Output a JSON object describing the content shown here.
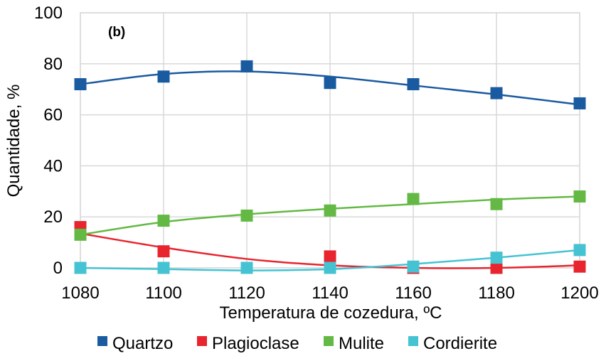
{
  "chart_data": {
    "type": "scatter",
    "panel_label": "(b)",
    "xlabel": "Temperatura de cozedura, ºC",
    "ylabel": "Quantidade, %",
    "xlim": [
      1080,
      1200
    ],
    "ylim": [
      0,
      100
    ],
    "x_ticks": [
      1080,
      1100,
      1120,
      1140,
      1160,
      1180,
      1200
    ],
    "y_ticks": [
      0,
      20,
      40,
      60,
      80,
      100
    ],
    "grid": true,
    "legend_position": "bottom",
    "trendlines": "smooth polynomial fit per series",
    "x": [
      1080,
      1100,
      1120,
      1140,
      1160,
      1180,
      1200
    ],
    "series": [
      {
        "name": "Quartzo",
        "color": "#1a5aa0",
        "values": [
          72,
          75,
          79,
          72.5,
          72,
          68.5,
          64.5
        ],
        "trend": [
          72,
          76,
          77,
          75,
          71.5,
          68,
          64
        ]
      },
      {
        "name": "Plagioclase",
        "color": "#e8242f",
        "values": [
          16,
          6.5,
          0,
          4.5,
          0,
          0,
          0.5
        ],
        "trend": [
          13.5,
          8,
          3.5,
          1,
          0,
          0,
          1
        ]
      },
      {
        "name": "Mulite",
        "color": "#63b944",
        "values": [
          13,
          18.5,
          20.5,
          22.5,
          27,
          25,
          28
        ],
        "trend": [
          13,
          18,
          21,
          23.2,
          25,
          26.8,
          28
        ]
      },
      {
        "name": "Cordierite",
        "color": "#45c3d3",
        "values": [
          0,
          0,
          0,
          0,
          0.5,
          4,
          7
        ],
        "trend": [
          0,
          -0.5,
          -1,
          -0.5,
          1.5,
          4,
          7
        ]
      }
    ]
  }
}
